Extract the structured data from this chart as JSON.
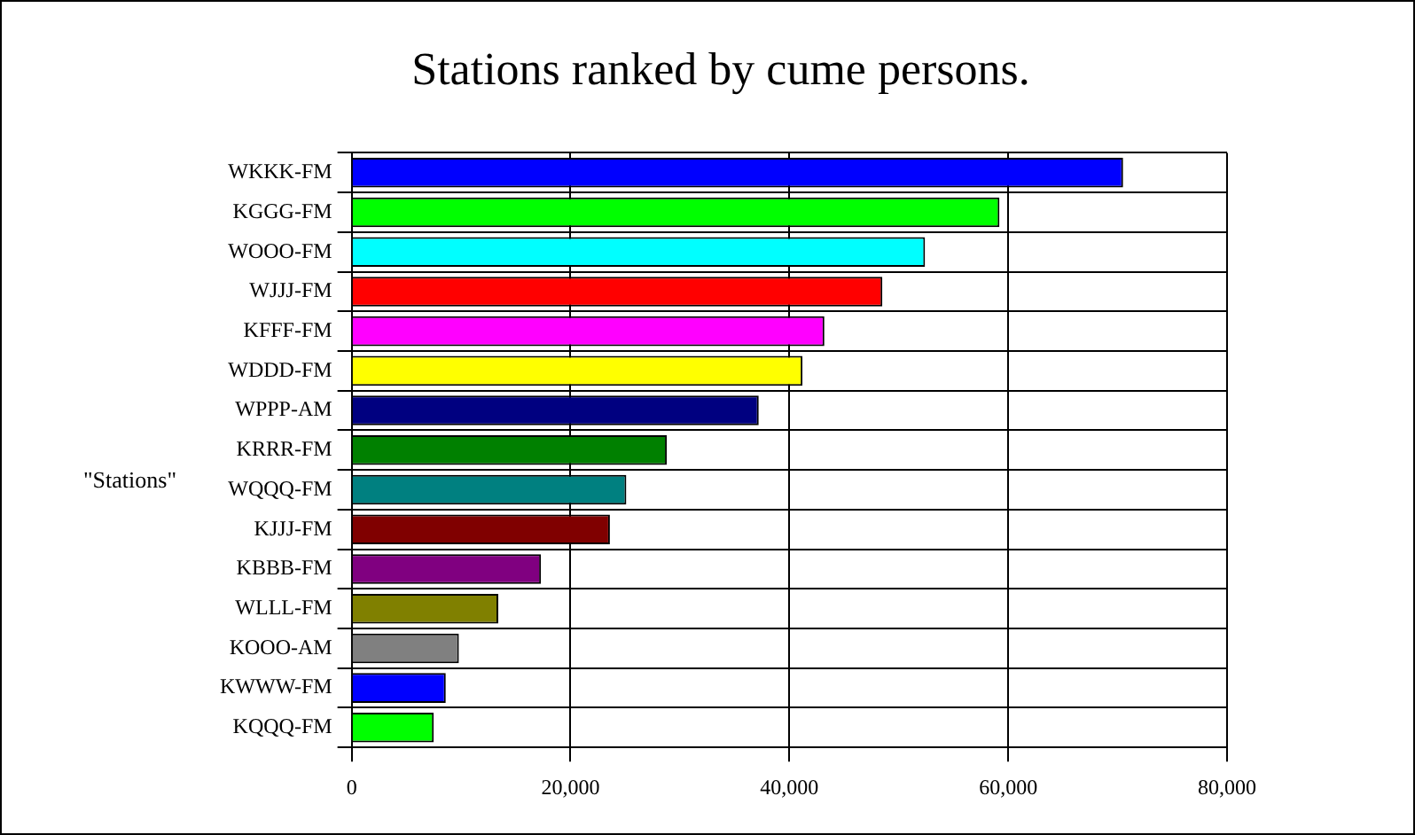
{
  "chart_data": {
    "type": "bar",
    "orientation": "horizontal",
    "title": "Stations ranked by cume persons.",
    "ylabel": "\"Stations\"",
    "categories": [
      "WKKK-FM",
      "KGGG-FM",
      "WOOO-FM",
      "WJJJ-FM",
      "KFFF-FM",
      "WDDD-FM",
      "WPPP-AM",
      "KRRR-FM",
      "WQQQ-FM",
      "KJJJ-FM",
      "KBBB-FM",
      "WLLL-FM",
      "KOOO-AM",
      "KWWW-FM",
      "KQQQ-FM"
    ],
    "values": [
      70500,
      59200,
      52400,
      48500,
      43200,
      41200,
      37200,
      28800,
      25100,
      23600,
      17300,
      13400,
      9800,
      8600,
      7500
    ],
    "colors": [
      "#0000ff",
      "#00ff00",
      "#00ffff",
      "#ff0000",
      "#ff00ff",
      "#ffff00",
      "#000080",
      "#008000",
      "#008080",
      "#800000",
      "#800080",
      "#808000",
      "#808080",
      "#0000ff",
      "#00ff00"
    ],
    "xlim": [
      0,
      80000
    ],
    "xticks": [
      0,
      {
        "value": 20000,
        "label": "20,000"
      },
      {
        "value": 40000,
        "label": "40,000"
      },
      {
        "value": 60000,
        "label": "60,000"
      },
      {
        "value": 80000,
        "label": "80,000"
      }
    ],
    "grid": true,
    "legend": false
  }
}
